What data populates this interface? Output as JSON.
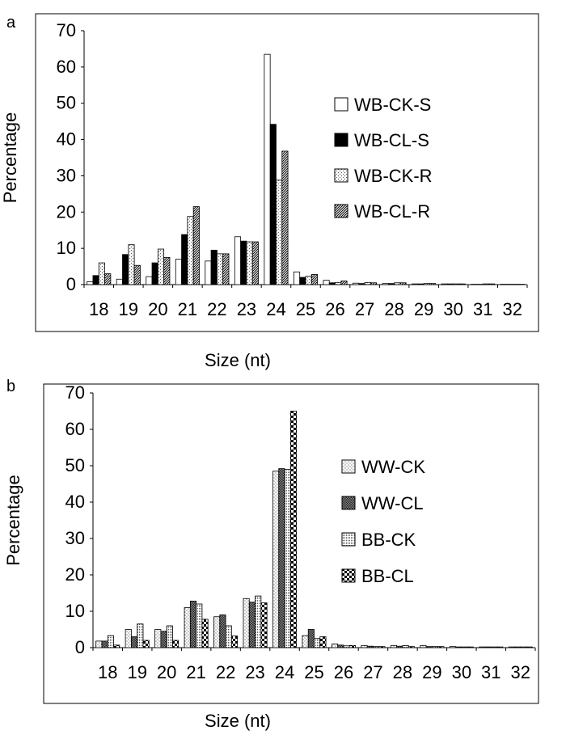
{
  "figure": {
    "panels": [
      {
        "letter": "a",
        "xlabel": "Size (nt)"
      },
      {
        "letter": "b",
        "xlabel": "Size (nt)"
      }
    ]
  },
  "chart_data": [
    {
      "type": "bar",
      "title": "",
      "xlabel": "Size (nt)",
      "ylabel": "Percentage",
      "ylim": [
        0,
        70
      ],
      "yticks": [
        0,
        10,
        20,
        30,
        40,
        50,
        60,
        70
      ],
      "grid": false,
      "legend_position": "right",
      "categories": [
        "18",
        "19",
        "20",
        "21",
        "22",
        "23",
        "24",
        "25",
        "26",
        "27",
        "28",
        "29",
        "30",
        "31",
        "32"
      ],
      "series": [
        {
          "name": "WB-CK-S",
          "pattern": "white",
          "values": [
            0.8,
            1.5,
            2.2,
            7.0,
            6.5,
            13.2,
            63.5,
            3.5,
            1.2,
            0.4,
            0.3,
            0.2,
            0.2,
            0.1,
            0.1
          ]
        },
        {
          "name": "WB-CL-S",
          "pattern": "black",
          "values": [
            2.5,
            8.3,
            6.0,
            13.8,
            9.5,
            12.0,
            44.2,
            2.0,
            0.5,
            0.3,
            0.3,
            0.2,
            0.2,
            0.1,
            0.1
          ]
        },
        {
          "name": "WB-CK-R",
          "pattern": "light-dash",
          "values": [
            6.0,
            11.0,
            9.8,
            18.8,
            8.5,
            11.8,
            28.8,
            2.3,
            0.6,
            0.6,
            0.5,
            0.3,
            0.2,
            0.2,
            0.1
          ]
        },
        {
          "name": "WB-CL-R",
          "pattern": "dense-diagonal",
          "values": [
            3.0,
            5.3,
            7.5,
            21.5,
            8.5,
            11.8,
            36.8,
            2.8,
            1.0,
            0.5,
            0.5,
            0.3,
            0.2,
            0.2,
            0.1
          ]
        }
      ]
    },
    {
      "type": "bar",
      "title": "",
      "xlabel": "Size (nt)",
      "ylabel": "Percentage",
      "ylim": [
        0,
        70
      ],
      "yticks": [
        0,
        10,
        20,
        30,
        40,
        50,
        60,
        70
      ],
      "grid": false,
      "legend_position": "right",
      "categories": [
        "18",
        "19",
        "20",
        "21",
        "22",
        "23",
        "24",
        "25",
        "26",
        "27",
        "28",
        "29",
        "30",
        "31",
        "32"
      ],
      "series": [
        {
          "name": "WW-CK",
          "pattern": "sparse-dots",
          "values": [
            1.8,
            5.0,
            5.0,
            11.0,
            8.5,
            13.5,
            48.5,
            3.3,
            1.0,
            0.6,
            0.6,
            0.6,
            0.3,
            0.2,
            0.2
          ]
        },
        {
          "name": "WW-CL",
          "pattern": "crosshatch",
          "values": [
            1.8,
            3.0,
            4.5,
            12.8,
            9.0,
            12.5,
            49.2,
            5.0,
            0.7,
            0.4,
            0.4,
            0.3,
            0.2,
            0.2,
            0.2
          ]
        },
        {
          "name": "BB-CK",
          "pattern": "dense-dots",
          "values": [
            3.3,
            6.5,
            6.0,
            12.0,
            6.0,
            14.2,
            49.0,
            2.5,
            0.5,
            0.3,
            0.6,
            0.3,
            0.2,
            0.2,
            0.2
          ]
        },
        {
          "name": "BB-CL",
          "pattern": "checker",
          "values": [
            0.7,
            2.0,
            2.0,
            7.8,
            3.2,
            12.3,
            65.0,
            3.0,
            0.6,
            0.3,
            0.3,
            0.3,
            0.2,
            0.2,
            0.2
          ]
        }
      ]
    }
  ]
}
